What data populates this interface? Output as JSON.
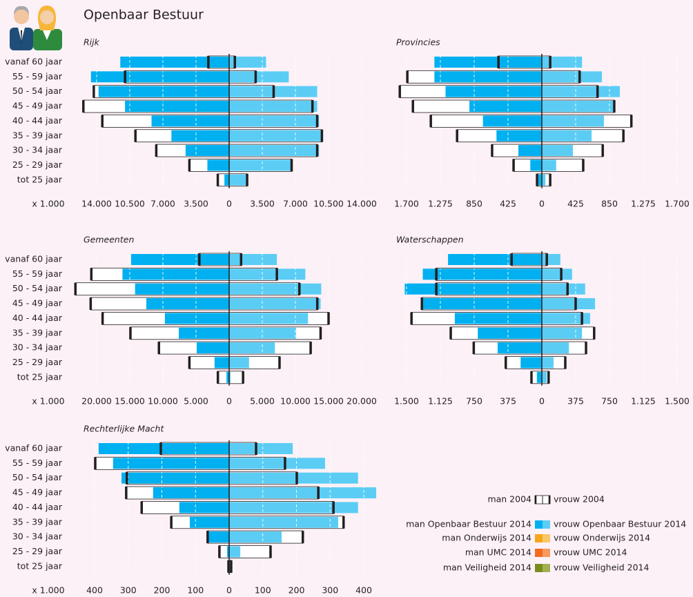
{
  "title": "Openbaar Bestuur",
  "legend": {
    "outline_color": "#231f20",
    "rows": [
      {
        "men": "man 2004",
        "women": "vrouw 2004",
        "men_color": "#ffffff",
        "women_color": "#ffffff"
      },
      {
        "men": "man Openbaar Bestuur 2014",
        "women": "vrouw Openbaar Bestuur 2014",
        "men_color": "#00b0f0",
        "women_color": "#5bcdf5"
      },
      {
        "men": "man Onderwijs 2014",
        "women": "vrouw Onderwijs 2014",
        "men_color": "#f7a51c",
        "women_color": "#fbc666"
      },
      {
        "men": "man UMC 2014",
        "women": "vrouw UMC 2014",
        "men_color": "#f26b21",
        "women_color": "#f79a5c"
      },
      {
        "men": "man Veiligheid 2014",
        "women": "vrouw Veiligheid 2014",
        "men_color": "#7b8c1e",
        "women_color": "#a3b050"
      }
    ]
  },
  "chart_data": [
    {
      "type": "pyramid",
      "title": "Rijk",
      "unit_label": "x 1.000",
      "categories": [
        "vanaf 60 jaar",
        "55 - 59 jaar",
        "50 - 54 jaar",
        "45 - 49 jaar",
        "40 - 44 jaar",
        "35 - 39 jaar",
        "30 - 34 jaar",
        "25 - 29 jaar",
        "tot 25 jaar"
      ],
      "men_2014": [
        11500,
        14600,
        13800,
        11000,
        8200,
        6100,
        4600,
        2300,
        500
      ],
      "women_2014": [
        3900,
        6300,
        9300,
        9300,
        9500,
        9800,
        9500,
        6500,
        1900
      ],
      "men_2004": [
        2200,
        11000,
        14300,
        15400,
        13400,
        9900,
        7700,
        4200,
        1200
      ],
      "women_2004": [
        600,
        2800,
        4700,
        8800,
        9300,
        9800,
        9300,
        6600,
        1900
      ],
      "xlim": [
        -14000,
        14000
      ],
      "grid": true,
      "xticks": [
        {
          "value": -14000,
          "label": "14.000"
        },
        {
          "value": -10500,
          "label": "10.500"
        },
        {
          "value": -7000,
          "label": "7.000"
        },
        {
          "value": -3500,
          "label": "3.500"
        },
        0,
        {
          "value": 3500,
          "label": "3.500"
        },
        {
          "value": 7000,
          "label": "7.000"
        },
        {
          "value": 10500,
          "label": "10.500"
        },
        {
          "value": 14000,
          "label": "14.000"
        }
      ]
    },
    {
      "type": "pyramid",
      "title": "Provincies",
      "men_2014": [
        1350,
        1350,
        1210,
        910,
        740,
        570,
        295,
        145,
        45
      ],
      "women_2014": [
        505,
        755,
        980,
        910,
        780,
        625,
        390,
        180,
        45
      ],
      "men_2004": [
        545,
        1690,
        1785,
        1620,
        1395,
        1065,
        625,
        355,
        60
      ],
      "women_2004": [
        105,
        475,
        700,
        910,
        1125,
        1025,
        765,
        520,
        105
      ],
      "xlim": [
        -1700,
        1700
      ],
      "grid": true,
      "xticks": [
        {
          "value": -1700,
          "label": "1.700"
        },
        {
          "value": -1275,
          "label": "1.275"
        },
        {
          "value": -850,
          "label": "850"
        },
        {
          "value": -425,
          "label": "425"
        },
        0,
        425,
        850,
        {
          "value": 1275,
          "label": "1.275"
        },
        {
          "value": 1700,
          "label": "1.700"
        }
      ]
    },
    {
      "type": "pyramid",
      "title": "Gemeenten",
      "unit_label": "x 1.000",
      "categories": [
        "vanaf 60 jaar",
        "55 - 59 jaar",
        "50 - 54 jaar",
        "45 - 49 jaar",
        "40 - 44 jaar",
        "35 - 39 jaar",
        "30 - 34 jaar",
        "25 - 29 jaar",
        "tot 25 jaar"
      ],
      "men_2014": [
        14800,
        16100,
        14200,
        12500,
        9700,
        7600,
        4900,
        2200,
        400
      ],
      "women_2014": [
        7200,
        11500,
        13900,
        13800,
        11900,
        10100,
        6900,
        3000,
        200
      ],
      "men_2004": [
        4500,
        20800,
        23200,
        20900,
        19100,
        14900,
        10600,
        6000,
        1700
      ],
      "women_2004": [
        1800,
        7200,
        10600,
        13300,
        15000,
        13800,
        12300,
        7600,
        2100
      ],
      "xlim": [
        -20000,
        20000
      ],
      "grid": true,
      "xticks": [
        {
          "value": -20000,
          "label": "20.000"
        },
        {
          "value": -15000,
          "label": "15.000"
        },
        {
          "value": -10000,
          "label": "10.000"
        },
        {
          "value": -5000,
          "label": "5.000"
        },
        0,
        {
          "value": 5000,
          "label": "5.000"
        },
        {
          "value": 10000,
          "label": "10.000"
        },
        {
          "value": 15000,
          "label": "15.000"
        },
        {
          "value": 20000,
          "label": "20.000"
        }
      ]
    },
    {
      "type": "pyramid",
      "title": "Waterschappen",
      "men_2014": [
        1040,
        1320,
        1520,
        1340,
        965,
        710,
        490,
        235,
        55
      ],
      "women_2014": [
        205,
        335,
        480,
        590,
        535,
        445,
        300,
        130,
        55
      ],
      "men_2004": [
        335,
        1170,
        1170,
        1330,
        1445,
        1010,
        755,
        400,
        115
      ],
      "women_2004": [
        55,
        215,
        285,
        375,
        445,
        580,
        490,
        260,
        75
      ],
      "xlim": [
        -1500,
        1500
      ],
      "grid": true,
      "xticks": [
        {
          "value": -1500,
          "label": "1.500"
        },
        {
          "value": -1125,
          "label": "1.125"
        },
        {
          "value": -750,
          "label": "750"
        },
        {
          "value": -375,
          "label": "375"
        },
        0,
        375,
        750,
        {
          "value": 1125,
          "label": "1.125"
        },
        {
          "value": 1500,
          "label": "1.500"
        }
      ]
    },
    {
      "type": "pyramid",
      "title": "Rechterlijke Macht",
      "unit_label": "x 1.000",
      "categories": [
        "vanaf 60 jaar",
        "55 - 59 jaar",
        "50 - 54 jaar",
        "45 - 49 jaar",
        "40 - 44 jaar",
        "35 - 39 jaar",
        "30 - 34 jaar",
        "25 - 29 jaar",
        "tot 25 jaar"
      ],
      "men_2014": [
        388,
        345,
        320,
        226,
        148,
        117,
        64,
        6,
        2
      ],
      "women_2014": [
        189,
        285,
        383,
        437,
        383,
        324,
        156,
        33,
        4
      ],
      "men_2004": [
        203,
        398,
        304,
        306,
        260,
        172,
        64,
        29,
        2
      ],
      "women_2004": [
        80,
        166,
        201,
        265,
        310,
        340,
        219,
        123,
        6
      ],
      "xlim": [
        -400,
        400
      ],
      "grid": true,
      "xticks": [
        {
          "value": -400,
          "label": "400"
        },
        {
          "value": -300,
          "label": "300"
        },
        {
          "value": -200,
          "label": "200"
        },
        {
          "value": -100,
          "label": "100"
        },
        0,
        100,
        200,
        300,
        400
      ]
    }
  ]
}
